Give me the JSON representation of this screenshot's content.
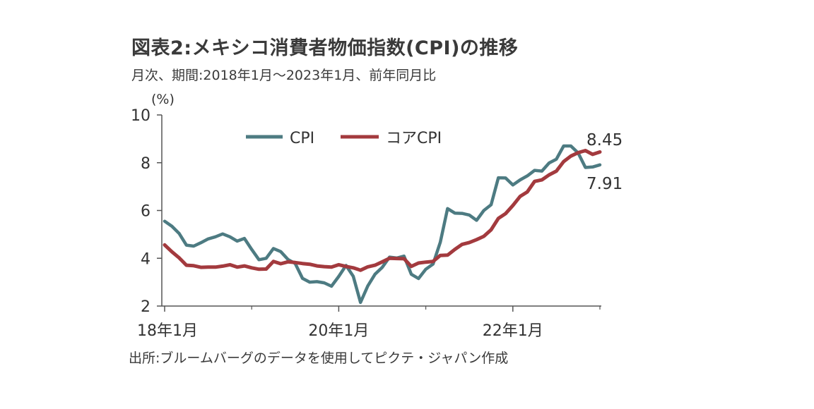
{
  "title": "図表2:メキシコ消費者物価指数(CPI)の推移",
  "subtitle": "月次、期間:2018年1月～2023年1月、前年同月比",
  "source": "出所:ブルームバーグのデータを使用してピクテ・ジャパン作成",
  "chart_data": {
    "type": "line",
    "unit_label": "(%)",
    "ylim": [
      2,
      10
    ],
    "yticks": [
      2,
      4,
      6,
      8,
      10
    ],
    "x_tick_labels": [
      "18年1月",
      "20年1月",
      "22年1月"
    ],
    "x": [
      "2018-01",
      "2018-02",
      "2018-03",
      "2018-04",
      "2018-05",
      "2018-06",
      "2018-07",
      "2018-08",
      "2018-09",
      "2018-10",
      "2018-11",
      "2018-12",
      "2019-01",
      "2019-02",
      "2019-03",
      "2019-04",
      "2019-05",
      "2019-06",
      "2019-07",
      "2019-08",
      "2019-09",
      "2019-10",
      "2019-11",
      "2019-12",
      "2020-01",
      "2020-02",
      "2020-03",
      "2020-04",
      "2020-05",
      "2020-06",
      "2020-07",
      "2020-08",
      "2020-09",
      "2020-10",
      "2020-11",
      "2020-12",
      "2021-01",
      "2021-02",
      "2021-03",
      "2021-04",
      "2021-05",
      "2021-06",
      "2021-07",
      "2021-08",
      "2021-09",
      "2021-10",
      "2021-11",
      "2021-12",
      "2022-01",
      "2022-02",
      "2022-03",
      "2022-04",
      "2022-05",
      "2022-06",
      "2022-07",
      "2022-08",
      "2022-09",
      "2022-10",
      "2022-11",
      "2022-12",
      "2023-01"
    ],
    "series": [
      {
        "name": "CPI",
        "color": "#4d7b82",
        "values": [
          5.55,
          5.34,
          5.04,
          4.55,
          4.51,
          4.65,
          4.81,
          4.9,
          5.02,
          4.9,
          4.72,
          4.83,
          4.37,
          3.94,
          4.0,
          4.41,
          4.28,
          3.95,
          3.78,
          3.16,
          3.0,
          3.02,
          2.97,
          2.83,
          3.24,
          3.7,
          3.25,
          2.15,
          2.84,
          3.33,
          3.62,
          4.05,
          4.01,
          4.09,
          3.33,
          3.15,
          3.54,
          3.76,
          4.67,
          6.08,
          5.89,
          5.88,
          5.81,
          5.59,
          6.0,
          6.24,
          7.37,
          7.36,
          7.07,
          7.28,
          7.45,
          7.68,
          7.65,
          7.99,
          8.15,
          8.7,
          8.7,
          8.41,
          7.8,
          7.82,
          7.91
        ]
      },
      {
        "name": "コアCPI",
        "color": "#a33a3e",
        "values": [
          4.56,
          4.27,
          4.02,
          3.71,
          3.69,
          3.62,
          3.63,
          3.63,
          3.67,
          3.73,
          3.63,
          3.68,
          3.6,
          3.54,
          3.55,
          3.87,
          3.77,
          3.85,
          3.82,
          3.78,
          3.75,
          3.68,
          3.65,
          3.63,
          3.73,
          3.66,
          3.6,
          3.5,
          3.64,
          3.71,
          3.85,
          4.0,
          3.99,
          3.98,
          3.66,
          3.8,
          3.84,
          3.87,
          4.12,
          4.13,
          4.37,
          4.58,
          4.66,
          4.78,
          4.92,
          5.19,
          5.67,
          5.87,
          6.21,
          6.59,
          6.78,
          7.22,
          7.28,
          7.49,
          7.65,
          8.05,
          8.28,
          8.42,
          8.51,
          8.35,
          8.45
        ]
      }
    ],
    "annotations": [
      "8.45",
      "7.91"
    ],
    "legend_position": "top-left"
  }
}
